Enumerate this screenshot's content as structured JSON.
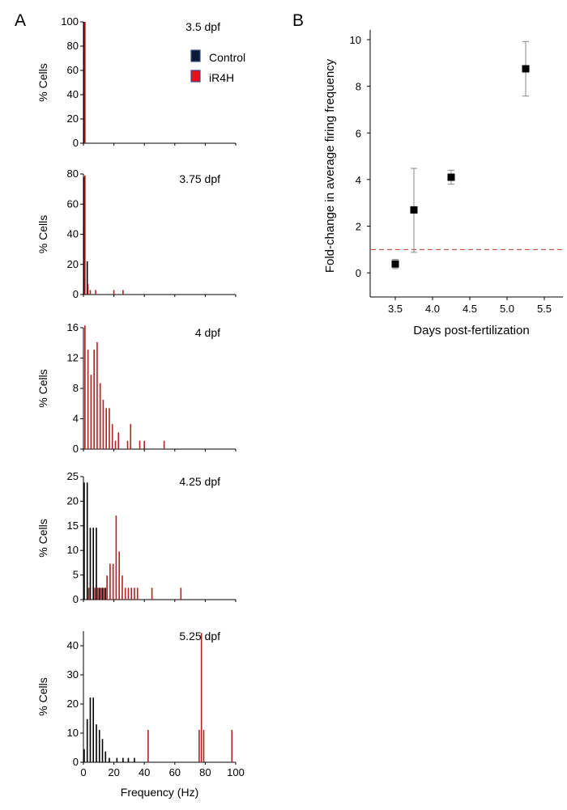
{
  "panels": {
    "a": "A",
    "b": "B"
  },
  "legend": {
    "control": "Control",
    "ir4h": "iR4H"
  },
  "colors": {
    "control": "#000000",
    "ir4h": "#b22222",
    "legend_control_fill": "#0b1a35",
    "legend_ir4h_fill": "#e8101a",
    "reference_line": "#c0392b",
    "axis": "#000000"
  },
  "chart_data": [
    {
      "type": "bar",
      "panel": "A",
      "title": "3.5 dpf",
      "xlabel": "",
      "ylabel": "% Cells",
      "xlim": [
        0,
        100
      ],
      "ylim": [
        0,
        100
      ],
      "yticks": [
        0,
        20,
        40,
        60,
        80,
        100
      ],
      "series": [
        {
          "name": "Control",
          "x": [
            0.5
          ],
          "values": [
            100
          ]
        },
        {
          "name": "iR4H",
          "x": [
            1.0
          ],
          "values": [
            100
          ]
        }
      ]
    },
    {
      "type": "bar",
      "panel": "A",
      "title": "3.75 dpf",
      "xlabel": "",
      "ylabel": "% Cells",
      "xlim": [
        0,
        100
      ],
      "ylim": [
        0,
        80
      ],
      "yticks": [
        0,
        20,
        40,
        60,
        80
      ],
      "series": [
        {
          "name": "Control",
          "x": [
            0.5,
            2.5
          ],
          "values": [
            78,
            22
          ]
        },
        {
          "name": "iR4H",
          "x": [
            1.0,
            3.0,
            4.5,
            8.0,
            20.0,
            26.0
          ],
          "values": [
            79,
            7,
            3,
            3,
            3,
            3
          ]
        }
      ]
    },
    {
      "type": "bar",
      "panel": "A",
      "title": "4 dpf",
      "xlabel": "",
      "ylabel": "% Cells",
      "xlim": [
        0,
        100
      ],
      "ylim": [
        0,
        16
      ],
      "yticks": [
        0,
        4,
        8,
        12,
        16
      ],
      "series": [
        {
          "name": "iR4H",
          "x": [
            1,
            3,
            5,
            7,
            9,
            11,
            13,
            15,
            17,
            19,
            21,
            23,
            29,
            31,
            37,
            40,
            53
          ],
          "values": [
            16.3,
            13.1,
            9.8,
            13.1,
            14.1,
            8.7,
            6.5,
            5.4,
            5.4,
            3.3,
            1.1,
            2.2,
            1.1,
            3.3,
            1.1,
            1.1,
            1.1
          ]
        }
      ]
    },
    {
      "type": "bar",
      "panel": "A",
      "title": "4.25 dpf",
      "xlabel": "",
      "ylabel": "% Cells",
      "xlim": [
        0,
        100
      ],
      "ylim": [
        0,
        25
      ],
      "yticks": [
        0,
        5,
        10,
        15,
        20,
        25
      ],
      "series": [
        {
          "name": "Control",
          "x": [
            0.5,
            2.5,
            4.5,
            6.5,
            8.5,
            10.5,
            12.5,
            14.5
          ],
          "values": [
            23.8,
            23.8,
            14.6,
            14.6,
            14.6,
            2.4,
            2.4,
            2.4
          ]
        },
        {
          "name": "iR4H",
          "x": [
            3.5,
            7.5,
            9.5,
            11.5,
            13.5,
            15.5,
            17.5,
            19.5,
            21.5,
            23.5,
            25.5,
            27.5,
            29.5,
            31.5,
            33.5,
            35.5,
            45.0,
            64.0
          ],
          "values": [
            2.4,
            2.4,
            2.4,
            2.4,
            2.4,
            4.9,
            7.3,
            7.3,
            17.1,
            9.8,
            4.9,
            2.4,
            2.4,
            2.4,
            2.4,
            2.4,
            2.4,
            2.4
          ]
        }
      ]
    },
    {
      "type": "bar",
      "panel": "A",
      "title": "5.25 dpf",
      "xlabel": "Frequency (Hz)",
      "ylabel": "% Cells",
      "xlim": [
        0,
        100
      ],
      "ylim": [
        0,
        45
      ],
      "yticks": [
        0,
        10,
        20,
        30,
        40
      ],
      "xticks": [
        0,
        20,
        40,
        60,
        80,
        100
      ],
      "series": [
        {
          "name": "Control",
          "x": [
            0.5,
            2.5,
            4.5,
            6.5,
            8.5,
            10.5,
            12.5,
            14.5,
            17.0,
            22.0,
            26.0,
            29.5,
            33.5
          ],
          "values": [
            4.5,
            14.8,
            22.2,
            22.2,
            13.0,
            11.1,
            8.0,
            3.7,
            1.5,
            1.5,
            1.5,
            1.5,
            1.5
          ]
        },
        {
          "name": "iR4H",
          "x": [
            42.5,
            76.0,
            77.5,
            79.0,
            97.5
          ],
          "values": [
            11.1,
            11.1,
            44.4,
            11.1,
            11.1
          ]
        }
      ]
    },
    {
      "type": "scatter",
      "panel": "B",
      "title": "",
      "xlabel": "Days post-fertilization",
      "ylabel": "Fold-change in average firing frequency",
      "xlim": [
        3.25,
        5.75
      ],
      "ylim": [
        -1,
        10
      ],
      "xticks": [
        "3.5",
        "4.0",
        "4.5",
        "5.0",
        "5.5"
      ],
      "yticks": [
        "0",
        "2",
        "4",
        "6",
        "8",
        "10"
      ],
      "reference_line_y": 1,
      "points": [
        {
          "x": 3.5,
          "y": 0.38,
          "lo": 0.18,
          "hi": 0.58
        },
        {
          "x": 3.75,
          "y": 2.7,
          "lo": 0.88,
          "hi": 4.48
        },
        {
          "x": 4.25,
          "y": 4.1,
          "lo": 3.8,
          "hi": 4.4
        },
        {
          "x": 5.25,
          "y": 8.75,
          "lo": 7.58,
          "hi": 9.92
        }
      ]
    }
  ]
}
